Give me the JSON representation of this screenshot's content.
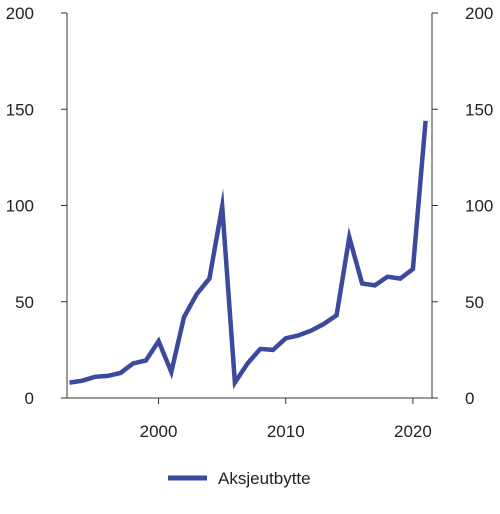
{
  "chart_data": {
    "type": "line",
    "title": "",
    "xlabel": "",
    "ylabel": "",
    "x": [
      1993,
      1994,
      1995,
      1996,
      1997,
      1998,
      1999,
      2000,
      2001,
      2002,
      2003,
      2004,
      2005,
      2006,
      2007,
      2008,
      2009,
      2010,
      2011,
      2012,
      2013,
      2014,
      2015,
      2016,
      2017,
      2018,
      2019,
      2020,
      2021
    ],
    "series": [
      {
        "name": "Aksjeutbytte",
        "color": "#3b4a9c",
        "values": [
          8,
          9,
          11,
          11.5,
          13,
          18,
          19.5,
          29.5,
          13.5,
          42,
          54,
          62,
          99.5,
          8,
          18,
          25.5,
          25,
          31,
          32.5,
          35,
          38.5,
          43,
          83.5,
          59.5,
          58.5,
          63,
          62,
          67,
          144
        ]
      }
    ],
    "xlim": [
      1992.8,
      2021.5
    ],
    "ylim": [
      0,
      200
    ],
    "xticks": [
      {
        "value": 2000,
        "label": "2000"
      },
      {
        "value": 2010,
        "label": "2010"
      },
      {
        "value": 2020,
        "label": "2020"
      }
    ],
    "yticks": [
      {
        "value": 0,
        "label": "0"
      },
      {
        "value": 50,
        "label": "50"
      },
      {
        "value": 100,
        "label": "100"
      },
      {
        "value": 150,
        "label": "150"
      },
      {
        "value": 200,
        "label": "200"
      }
    ],
    "grid": false,
    "dual_y_axis": true,
    "legend_position": "bottom-center",
    "legend": [
      {
        "label": "Aksjeutbytte",
        "color": "#3b4a9c"
      }
    ]
  }
}
